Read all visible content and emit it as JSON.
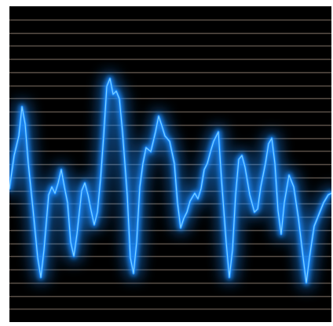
{
  "image": {
    "subject": "glowing-sound-waveform",
    "colors": {
      "background": "#000000",
      "grid_line": "#6b5f55",
      "wave_core": "#7fd0ff",
      "wave_glow": "#1a8cff"
    },
    "horizontal_line_count": 23,
    "waveform": [
      [
        0,
        232
      ],
      [
        6,
        190
      ],
      [
        12,
        165
      ],
      [
        16,
        128
      ],
      [
        20,
        150
      ],
      [
        24,
        200
      ],
      [
        30,
        258
      ],
      [
        36,
        320
      ],
      [
        40,
        345
      ],
      [
        44,
        310
      ],
      [
        50,
        240
      ],
      [
        54,
        230
      ],
      [
        58,
        238
      ],
      [
        62,
        225
      ],
      [
        66,
        208
      ],
      [
        70,
        230
      ],
      [
        74,
        250
      ],
      [
        78,
        300
      ],
      [
        82,
        318
      ],
      [
        86,
        290
      ],
      [
        92,
        235
      ],
      [
        96,
        225
      ],
      [
        100,
        240
      ],
      [
        104,
        260
      ],
      [
        108,
        278
      ],
      [
        112,
        262
      ],
      [
        116,
        220
      ],
      [
        120,
        165
      ],
      [
        124,
        102
      ],
      [
        128,
        92
      ],
      [
        132,
        112
      ],
      [
        136,
        108
      ],
      [
        140,
        118
      ],
      [
        144,
        160
      ],
      [
        150,
        240
      ],
      [
        154,
        320
      ],
      [
        158,
        340
      ],
      [
        162,
        300
      ],
      [
        166,
        230
      ],
      [
        170,
        200
      ],
      [
        174,
        180
      ],
      [
        180,
        185
      ],
      [
        186,
        160
      ],
      [
        190,
        140
      ],
      [
        194,
        152
      ],
      [
        198,
        165
      ],
      [
        204,
        172
      ],
      [
        210,
        200
      ],
      [
        214,
        250
      ],
      [
        218,
        282
      ],
      [
        222,
        270
      ],
      [
        226,
        262
      ],
      [
        230,
        248
      ],
      [
        236,
        238
      ],
      [
        240,
        245
      ],
      [
        244,
        232
      ],
      [
        248,
        208
      ],
      [
        252,
        200
      ],
      [
        256,
        185
      ],
      [
        260,
        172
      ],
      [
        266,
        160
      ],
      [
        270,
        220
      ],
      [
        276,
        300
      ],
      [
        280,
        345
      ],
      [
        284,
        310
      ],
      [
        288,
        240
      ],
      [
        292,
        195
      ],
      [
        296,
        190
      ],
      [
        300,
        205
      ],
      [
        306,
        240
      ],
      [
        312,
        262
      ],
      [
        316,
        258
      ],
      [
        320,
        230
      ],
      [
        326,
        200
      ],
      [
        330,
        175
      ],
      [
        334,
        168
      ],
      [
        338,
        200
      ],
      [
        342,
        260
      ],
      [
        346,
        290
      ],
      [
        350,
        250
      ],
      [
        356,
        215
      ],
      [
        362,
        230
      ],
      [
        368,
        270
      ],
      [
        374,
        320
      ],
      [
        378,
        352
      ],
      [
        382,
        320
      ],
      [
        388,
        280
      ],
      [
        394,
        265
      ],
      [
        400,
        250
      ],
      [
        406,
        240
      ],
      [
        410,
        238
      ]
    ]
  }
}
